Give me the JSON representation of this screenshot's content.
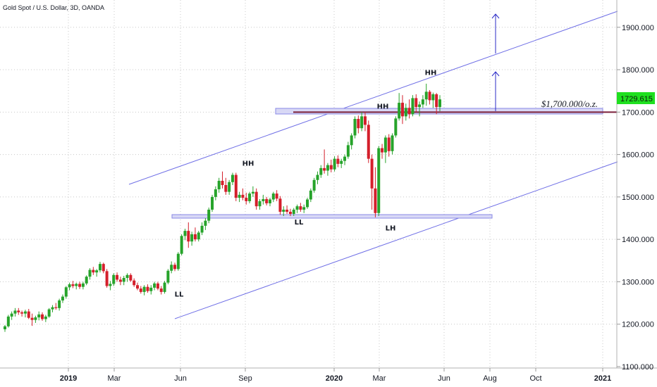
{
  "header": {
    "title": "Gold Spot / U.S. Dollar, 3D, OANDA"
  },
  "colors": {
    "up": "#26a32a",
    "down": "#d41f2b",
    "channel": "#6f6fe6",
    "zone_fill": "#d8d8f5",
    "zone_stroke": "#8a8ae6",
    "resistance_line": "#7a1f3a",
    "arrow": "#2b2bc7",
    "badge": "#1fe01f",
    "grid": "#c8c8c8"
  },
  "chart_data": {
    "type": "candlestick",
    "symbol": "Gold Spot / U.S. Dollar",
    "interval": "3D",
    "source": "OANDA",
    "y_ticks": [
      "1100.000",
      "1200.000",
      "1300.000",
      "1400.000",
      "1500.000",
      "1600.000",
      "1700.000",
      "1800.000",
      "1900.000"
    ],
    "x_ticks": [
      "2019",
      "Mar",
      "Jun",
      "Sep",
      "2020",
      "Mar",
      "Jun",
      "Aug",
      "Oct",
      "2021"
    ],
    "ylim": [
      1100,
      1950
    ],
    "last_price": "1729.615",
    "price_level_label": "$1,700.000/o.z.",
    "price_level": 1700,
    "annotations": [
      {
        "text": "HH",
        "price": 1788
      },
      {
        "text": "HH",
        "price": 1708
      },
      {
        "text": "HH",
        "price": 1574
      },
      {
        "text": "LL",
        "price": 1435
      },
      {
        "text": "LH",
        "price": 1421
      },
      {
        "text": "LL",
        "price": 1265
      }
    ],
    "candles_ohlc": [
      [
        1188,
        1198,
        1182,
        1195
      ],
      [
        1195,
        1222,
        1192,
        1218
      ],
      [
        1218,
        1230,
        1210,
        1225
      ],
      [
        1225,
        1238,
        1218,
        1232
      ],
      [
        1232,
        1238,
        1222,
        1228
      ],
      [
        1228,
        1232,
        1218,
        1225
      ],
      [
        1225,
        1234,
        1216,
        1230
      ],
      [
        1230,
        1236,
        1212,
        1215
      ],
      [
        1215,
        1225,
        1196,
        1210
      ],
      [
        1210,
        1220,
        1203,
        1216
      ],
      [
        1216,
        1230,
        1209,
        1223
      ],
      [
        1223,
        1228,
        1208,
        1212
      ],
      [
        1212,
        1222,
        1205,
        1218
      ],
      [
        1218,
        1238,
        1215,
        1235
      ],
      [
        1235,
        1245,
        1228,
        1240
      ],
      [
        1240,
        1250,
        1234,
        1238
      ],
      [
        1238,
        1260,
        1232,
        1256
      ],
      [
        1256,
        1270,
        1250,
        1265
      ],
      [
        1265,
        1290,
        1260,
        1287
      ],
      [
        1287,
        1298,
        1280,
        1294
      ],
      [
        1294,
        1302,
        1285,
        1290
      ],
      [
        1290,
        1298,
        1282,
        1295
      ],
      [
        1295,
        1300,
        1283,
        1288
      ],
      [
        1288,
        1300,
        1282,
        1296
      ],
      [
        1296,
        1315,
        1292,
        1312
      ],
      [
        1312,
        1332,
        1305,
        1328
      ],
      [
        1328,
        1335,
        1316,
        1322
      ],
      [
        1322,
        1330,
        1312,
        1327
      ],
      [
        1327,
        1347,
        1322,
        1342
      ],
      [
        1342,
        1345,
        1320,
        1325
      ],
      [
        1325,
        1330,
        1286,
        1290
      ],
      [
        1290,
        1302,
        1280,
        1295
      ],
      [
        1295,
        1320,
        1290,
        1316
      ],
      [
        1316,
        1322,
        1300,
        1305
      ],
      [
        1305,
        1312,
        1292,
        1300
      ],
      [
        1300,
        1314,
        1292,
        1309
      ],
      [
        1309,
        1320,
        1300,
        1316
      ],
      [
        1316,
        1320,
        1300,
        1303
      ],
      [
        1303,
        1308,
        1288,
        1292
      ],
      [
        1292,
        1298,
        1280,
        1284
      ],
      [
        1284,
        1290,
        1272,
        1276
      ],
      [
        1276,
        1292,
        1268,
        1288
      ],
      [
        1288,
        1294,
        1274,
        1278
      ],
      [
        1278,
        1292,
        1270,
        1286
      ],
      [
        1286,
        1300,
        1280,
        1296
      ],
      [
        1296,
        1300,
        1280,
        1284
      ],
      [
        1284,
        1290,
        1270,
        1276
      ],
      [
        1276,
        1302,
        1272,
        1298
      ],
      [
        1298,
        1330,
        1294,
        1326
      ],
      [
        1326,
        1348,
        1320,
        1340
      ],
      [
        1340,
        1345,
        1325,
        1330
      ],
      [
        1330,
        1370,
        1326,
        1366
      ],
      [
        1366,
        1412,
        1362,
        1408
      ],
      [
        1408,
        1425,
        1398,
        1420
      ],
      [
        1420,
        1440,
        1380,
        1395
      ],
      [
        1395,
        1418,
        1385,
        1412
      ],
      [
        1412,
        1428,
        1395,
        1400
      ],
      [
        1400,
        1420,
        1395,
        1416
      ],
      [
        1416,
        1440,
        1410,
        1432
      ],
      [
        1432,
        1450,
        1422,
        1444
      ],
      [
        1444,
        1475,
        1438,
        1470
      ],
      [
        1470,
        1505,
        1465,
        1500
      ],
      [
        1500,
        1525,
        1492,
        1518
      ],
      [
        1518,
        1545,
        1510,
        1538
      ],
      [
        1538,
        1560,
        1520,
        1528
      ],
      [
        1528,
        1545,
        1505,
        1512
      ],
      [
        1512,
        1540,
        1505,
        1535
      ],
      [
        1535,
        1557,
        1528,
        1552
      ],
      [
        1552,
        1557,
        1490,
        1498
      ],
      [
        1498,
        1512,
        1488,
        1505
      ],
      [
        1505,
        1520,
        1492,
        1498
      ],
      [
        1498,
        1510,
        1482,
        1490
      ],
      [
        1490,
        1512,
        1485,
        1508
      ],
      [
        1508,
        1525,
        1500,
        1512
      ],
      [
        1512,
        1520,
        1470,
        1478
      ],
      [
        1478,
        1495,
        1470,
        1490
      ],
      [
        1490,
        1505,
        1482,
        1495
      ],
      [
        1495,
        1500,
        1480,
        1485
      ],
      [
        1485,
        1498,
        1478,
        1494
      ],
      [
        1494,
        1512,
        1488,
        1508
      ],
      [
        1508,
        1516,
        1490,
        1496
      ],
      [
        1496,
        1502,
        1458,
        1465
      ],
      [
        1465,
        1478,
        1455,
        1470
      ],
      [
        1470,
        1480,
        1460,
        1465
      ],
      [
        1465,
        1472,
        1455,
        1460
      ],
      [
        1460,
        1474,
        1455,
        1470
      ],
      [
        1470,
        1482,
        1462,
        1478
      ],
      [
        1478,
        1486,
        1465,
        1470
      ],
      [
        1470,
        1482,
        1462,
        1476
      ],
      [
        1476,
        1498,
        1472,
        1494
      ],
      [
        1494,
        1520,
        1488,
        1515
      ],
      [
        1515,
        1545,
        1510,
        1540
      ],
      [
        1540,
        1560,
        1530,
        1552
      ],
      [
        1552,
        1575,
        1545,
        1568
      ],
      [
        1568,
        1612,
        1555,
        1562
      ],
      [
        1562,
        1580,
        1550,
        1575
      ],
      [
        1575,
        1588,
        1558,
        1565
      ],
      [
        1565,
        1596,
        1560,
        1590
      ],
      [
        1590,
        1598,
        1570,
        1578
      ],
      [
        1578,
        1590,
        1568,
        1585
      ],
      [
        1585,
        1600,
        1575,
        1595
      ],
      [
        1595,
        1630,
        1590,
        1622
      ],
      [
        1622,
        1650,
        1612,
        1645
      ],
      [
        1645,
        1690,
        1638,
        1684
      ],
      [
        1684,
        1692,
        1650,
        1662
      ],
      [
        1662,
        1700,
        1655,
        1690
      ],
      [
        1690,
        1700,
        1655,
        1670
      ],
      [
        1670,
        1680,
        1580,
        1590
      ],
      [
        1590,
        1600,
        1470,
        1520
      ],
      [
        1520,
        1570,
        1452,
        1462
      ],
      [
        1462,
        1620,
        1455,
        1615
      ],
      [
        1615,
        1625,
        1590,
        1605
      ],
      [
        1605,
        1645,
        1580,
        1640
      ],
      [
        1640,
        1648,
        1595,
        1608
      ],
      [
        1608,
        1650,
        1600,
        1645
      ],
      [
        1645,
        1690,
        1640,
        1685
      ],
      [
        1685,
        1745,
        1680,
        1722
      ],
      [
        1722,
        1740,
        1672,
        1690
      ],
      [
        1690,
        1720,
        1680,
        1710
      ],
      [
        1710,
        1730,
        1685,
        1695
      ],
      [
        1695,
        1740,
        1690,
        1733
      ],
      [
        1733,
        1742,
        1700,
        1712
      ],
      [
        1712,
        1725,
        1690,
        1718
      ],
      [
        1718,
        1740,
        1710,
        1730
      ],
      [
        1730,
        1767,
        1715,
        1748
      ],
      [
        1748,
        1752,
        1718,
        1728
      ],
      [
        1728,
        1746,
        1710,
        1742
      ],
      [
        1742,
        1745,
        1695,
        1712
      ],
      [
        1712,
        1740,
        1702,
        1730
      ]
    ]
  }
}
